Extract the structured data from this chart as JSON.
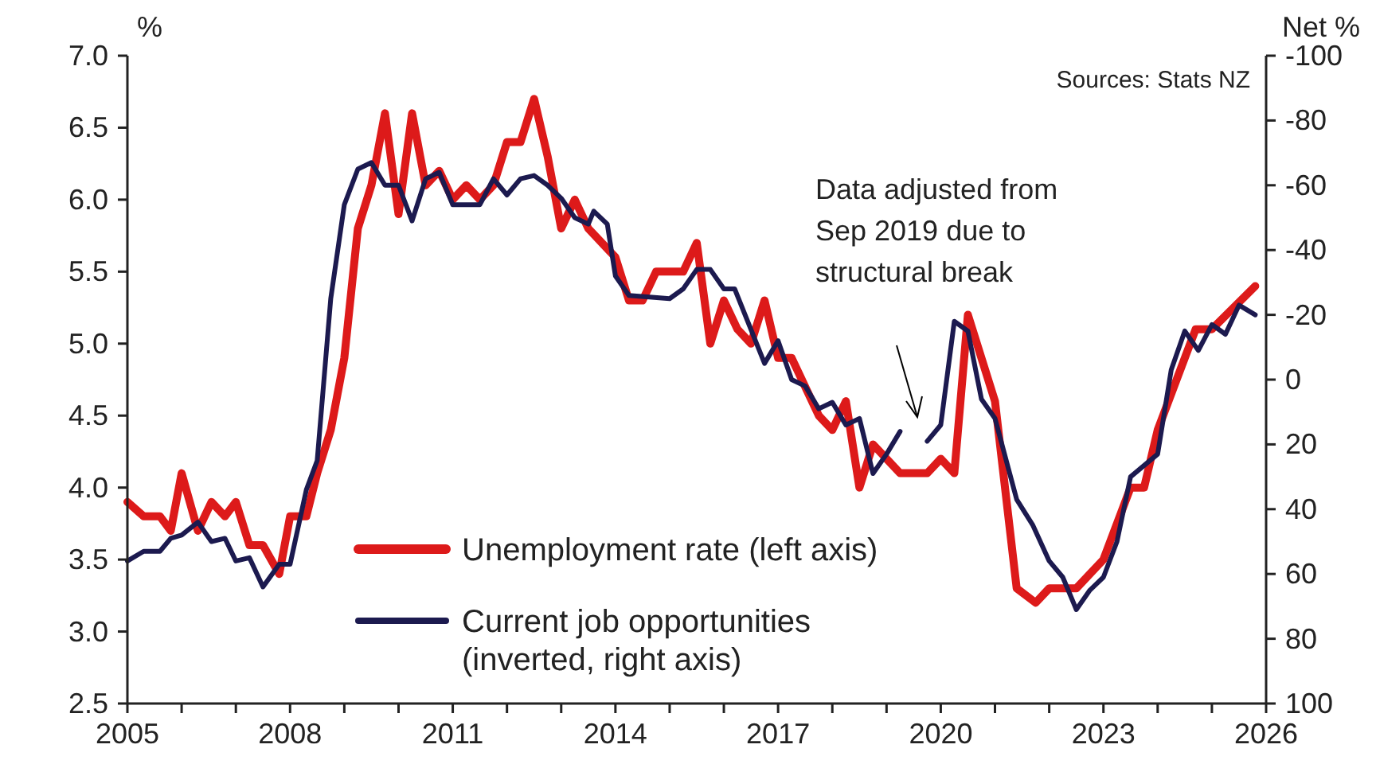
{
  "chart_data": {
    "type": "line",
    "ylabel": "%",
    "y2label": "Net %",
    "xlim": [
      2005,
      2026
    ],
    "xticks": [
      2005,
      {
        "value": 2006,
        "label": null
      },
      {
        "value": 2007,
        "label": null
      },
      2008,
      {
        "value": 2009,
        "label": null
      },
      {
        "value": 2010,
        "label": null
      },
      2011,
      {
        "value": 2012,
        "label": null
      },
      {
        "value": 2013,
        "label": null
      },
      2014,
      {
        "value": 2015,
        "label": null
      },
      {
        "value": 2016,
        "label": null
      },
      2017,
      {
        "value": 2018,
        "label": null
      },
      {
        "value": 2019,
        "label": null
      },
      2020,
      {
        "value": 2021,
        "label": null
      },
      {
        "value": 2022,
        "label": null
      },
      2023,
      {
        "value": 2024,
        "label": null
      },
      {
        "value": 2025,
        "label": null
      },
      2026
    ],
    "ylim": [
      2.5,
      7
    ],
    "yticks": [
      {
        "value": 2.5,
        "label": "2.5"
      },
      {
        "value": 3,
        "label": "3.0"
      },
      {
        "value": 3.5,
        "label": "3.5"
      },
      {
        "value": 4,
        "label": "4.0"
      },
      {
        "value": 4.5,
        "label": "4.5"
      },
      {
        "value": 5,
        "label": "5.0"
      },
      {
        "value": 5.5,
        "label": "5.5"
      },
      {
        "value": 6,
        "label": "6.0"
      },
      {
        "value": 6.5,
        "label": "6.5"
      },
      {
        "value": 7,
        "label": "7.0"
      }
    ],
    "y2lim": [
      100,
      -100
    ],
    "y2ticks": [
      100,
      80,
      60,
      40,
      20,
      0,
      -20,
      -40,
      -60,
      -80,
      -100
    ],
    "legend": "bottom left",
    "annotations": [
      "Sources: Stats NZ",
      "Data adjusted from\nSep 2019 due to\nstructural break"
    ],
    "series": [
      {
        "name": "Unemployment rate (left axis)",
        "color": "#dd1a1a",
        "x": [
          2005,
          2005.3,
          2005.6,
          2005.8,
          2006,
          2006.3,
          2006.55,
          2006.8,
          2007,
          2007.25,
          2007.5,
          2007.8,
          2008,
          2008.3,
          2008.5,
          2008.75,
          2009,
          2009.25,
          2009.5,
          2009.75,
          2010,
          2010.25,
          2010.5,
          2010.75,
          2011,
          2011.25,
          2011.5,
          2011.75,
          2012,
          2012.25,
          2012.5,
          2012.75,
          2013,
          2013.25,
          2013.5,
          2014,
          2014.25,
          2014.5,
          2014.75,
          2015.25,
          2015.5,
          2015.75,
          2016,
          2016.25,
          2016.5,
          2016.75,
          2017,
          2017.25,
          2017.75,
          2018,
          2018.25,
          2018.5,
          2018.75,
          2019,
          2019.25,
          2019.75,
          2020,
          2020.25,
          2020.5,
          2021,
          2021.4,
          2021.75,
          2022,
          2022.5,
          2023,
          2023.5,
          2023.75,
          2024,
          2024.3,
          2024.7,
          2025,
          2025.8
        ],
        "values": [
          3.9,
          3.8,
          3.8,
          3.7,
          4.1,
          3.7,
          3.9,
          3.8,
          3.9,
          3.6,
          3.6,
          3.4,
          3.8,
          3.8,
          4.1,
          4.4,
          4.9,
          5.8,
          6.1,
          6.6,
          5.9,
          6.6,
          6.1,
          6.2,
          6.0,
          6.1,
          6.0,
          6.1,
          6.4,
          6.4,
          6.7,
          6.3,
          5.8,
          6.0,
          5.8,
          5.6,
          5.3,
          5.3,
          5.5,
          5.5,
          5.7,
          5.0,
          5.3,
          5.1,
          5.0,
          5.3,
          4.9,
          4.9,
          4.5,
          4.4,
          4.6,
          4.0,
          4.3,
          4.2,
          4.1,
          4.1,
          4.2,
          4.1,
          5.2,
          4.6,
          3.3,
          3.2,
          3.3,
          3.3,
          3.5,
          4.0,
          4.0,
          4.4,
          4.7,
          5.1,
          5.1,
          5.4
        ]
      },
      {
        "name": "Current job opportunities (inverted, right axis)",
        "color": "#1c1a4f",
        "axis": "y2",
        "x": [
          2005,
          2005.3,
          2005.6,
          2005.8,
          2006,
          2006.3,
          2006.55,
          2006.8,
          2007,
          2007.25,
          2007.5,
          2007.8,
          2008,
          2008.3,
          2008.5,
          2008.75,
          2009,
          2009.25,
          2009.5,
          2009.75,
          2010,
          2010.25,
          2010.5,
          2010.75,
          2011,
          2011.5,
          2011.75,
          2012,
          2012.25,
          2012.5,
          2012.75,
          2013,
          2013.25,
          2013.5,
          2013.6,
          2013.85,
          2014,
          2014.25,
          2015,
          2015.25,
          2015.5,
          2015.75,
          2016,
          2016.2,
          2016.75,
          2017,
          2017.25,
          2017.5,
          2017.75,
          2018,
          2018.25,
          2018.5,
          2018.75,
          2019,
          2019.25,
          2019.5,
          2019.75,
          2020,
          2020.25,
          2020.5,
          2020.75,
          2021,
          2021.4,
          2021.7,
          2022,
          2022.25,
          2022.5,
          2022.75,
          2023,
          2023.25,
          2023.5,
          2024,
          2024.25,
          2024.5,
          2024.75,
          2025,
          2025.25,
          2025.5,
          2025.8
        ],
        "values": [
          56,
          53,
          53,
          49,
          48,
          44,
          50,
          49,
          56,
          55,
          64,
          57,
          57,
          34,
          25,
          -25,
          -54,
          -65,
          -67,
          -60,
          -60,
          -49,
          -62,
          -64,
          -54,
          -54,
          -62,
          -57,
          -62,
          -63,
          -60,
          -56,
          -50,
          -48,
          -52,
          -48,
          -32,
          -26,
          -25,
          -28,
          -34,
          -34,
          -28,
          -28,
          -5,
          -12,
          0,
          2,
          9,
          7,
          14,
          12,
          29,
          23,
          16,
          null,
          19,
          14,
          -18,
          -15,
          6,
          12,
          37,
          45,
          56,
          61,
          71,
          65,
          61,
          50,
          30,
          23,
          -3,
          -15,
          -9,
          -17,
          -14,
          -23,
          -20
        ]
      }
    ]
  }
}
